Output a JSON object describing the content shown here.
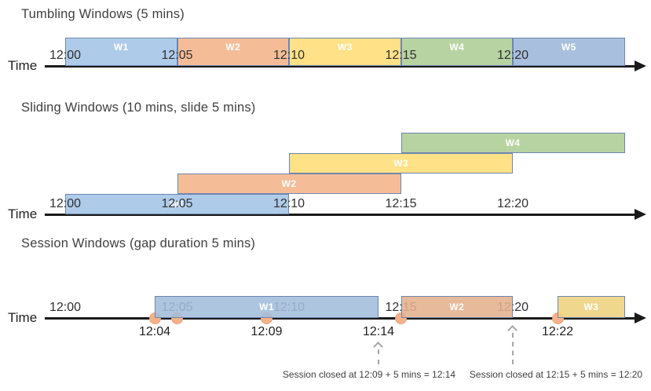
{
  "palette": {
    "axis": "#1A1A1A",
    "title_text": "#3F3F3F",
    "tick_text": "#303030",
    "event_label_text": "#1F1F1F",
    "annotation_text": "#3F3F3F",
    "annotation_gray": "#A6A6A6",
    "box_border": "#6E86B0",
    "event_dot_fill": "#F5B18A",
    "event_dot_border": "#EE9E73",
    "window_fills": {
      "blue": "#AECBE9",
      "orange": "#F4BD98",
      "yellow": "#FFE187",
      "green": "#B7D3A2",
      "steel_blue": "#A9BFDE"
    }
  },
  "diagrams": [
    {
      "id": "tumbling",
      "title": "Tumbling Windows (5 mins)",
      "time_label": "Time",
      "axis_ticks": [
        "12:00",
        "12:05",
        "12:10",
        "12:15",
        "12:20"
      ],
      "windows": [
        {
          "label": "W1",
          "start": "12:00",
          "end": "12:05",
          "color": "blue"
        },
        {
          "label": "W2",
          "start": "12:05",
          "end": "12:10",
          "color": "orange"
        },
        {
          "label": "W3",
          "start": "12:10",
          "end": "12:15",
          "color": "yellow"
        },
        {
          "label": "W4",
          "start": "12:15",
          "end": "12:20",
          "color": "green"
        },
        {
          "label": "W5",
          "start": "12:20",
          "end": "12:25",
          "color": "steel_blue"
        }
      ]
    },
    {
      "id": "sliding",
      "title": "Sliding Windows (10 mins, slide 5 mins)",
      "time_label": "Time",
      "axis_ticks": [
        "12:00",
        "12:05",
        "12:10",
        "12:15",
        "12:20"
      ],
      "windows": [
        {
          "label": "W1",
          "start": "12:00",
          "end": "12:10",
          "color": "blue",
          "row": 0
        },
        {
          "label": "W2",
          "start": "12:05",
          "end": "12:15",
          "color": "orange",
          "row": 1
        },
        {
          "label": "W3",
          "start": "12:10",
          "end": "12:20",
          "color": "yellow",
          "row": 2
        },
        {
          "label": "W4",
          "start": "12:15",
          "end": "12:25",
          "color": "green",
          "row": 3
        }
      ]
    },
    {
      "id": "session",
      "title": "Session Windows (gap duration 5 mins)",
      "time_label": "Time",
      "axis_ticks": [
        "12:00",
        "12:05",
        "12:10",
        "12:15",
        "12:20"
      ],
      "windows": [
        {
          "label": "W1",
          "start": "12:04",
          "end": "12:14",
          "color": "blue"
        },
        {
          "label": "W2",
          "start": "12:15",
          "end": "12:20",
          "color": "orange"
        },
        {
          "label": "W3",
          "start": "12:22",
          "end": "12:25",
          "color": "yellow"
        }
      ],
      "events": [
        "12:04",
        "12:05",
        "12:09",
        "12:15",
        "12:22"
      ],
      "event_labels": [
        "12:04",
        "12:09",
        "12:14",
        "12:22"
      ],
      "annotations": [
        {
          "text": "Session closed at 12:09 + 5 mins = 12:14",
          "points_at": "12:14"
        },
        {
          "text": "Session closed at 12:15 + 5 mins = 12:20",
          "points_at": "12:20"
        }
      ]
    }
  ]
}
